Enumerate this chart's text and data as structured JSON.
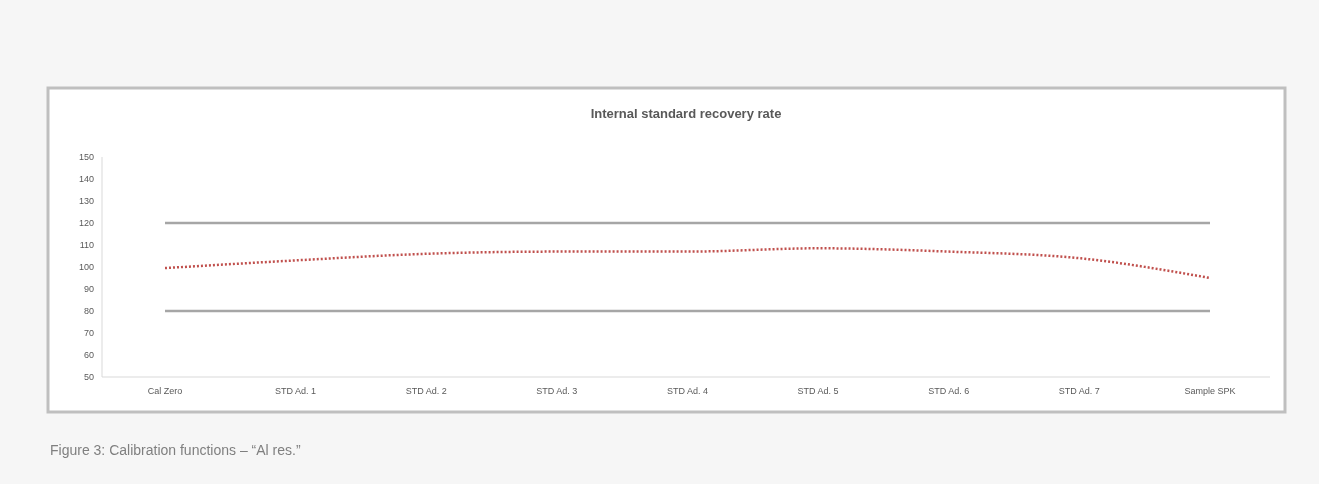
{
  "chart_data": {
    "type": "line",
    "title": "Internal standard recovery rate",
    "categories": [
      "Cal Zero",
      "STD Ad. 1",
      "STD Ad. 2",
      "STD Ad. 3",
      "STD Ad. 4",
      "STD Ad. 5",
      "STD Ad. 6",
      "STD Ad. 7",
      "Sample SPK"
    ],
    "series": [
      {
        "color": "#c0504d",
        "values": [
          99.5,
          103,
          106,
          107,
          107,
          108.5,
          107,
          104,
          95
        ]
      }
    ],
    "ylim": [
      50,
      150
    ],
    "yticks": [
      50,
      60,
      70,
      80,
      90,
      100,
      110,
      120,
      130,
      140,
      150
    ],
    "ref_lines": [
      {
        "axis": "y",
        "value": 120,
        "color": "#a6a6a6"
      },
      {
        "axis": "y",
        "value": 80,
        "color": "#a6a6a6"
      }
    ],
    "line_style": "dotted",
    "marker": "none",
    "grid": false,
    "annotations": [
      "Figure 3: Calibration functions – “Al res.”"
    ]
  }
}
